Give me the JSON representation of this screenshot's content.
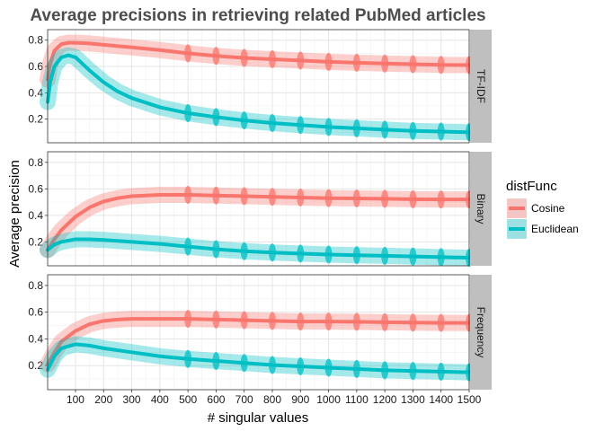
{
  "chart_data": {
    "type": "line",
    "title": "Average precisions in retrieving related PubMed articles",
    "xlabel": "# singular values",
    "ylabel": "Average precision",
    "x_ticks": [
      100,
      200,
      300,
      400,
      500,
      600,
      700,
      800,
      900,
      1000,
      1100,
      1200,
      1300,
      1400,
      1500
    ],
    "x_tick_labels": [
      "100",
      "200",
      "300",
      "400",
      "500",
      "600",
      "700",
      "800",
      "900",
      "1000",
      "1100",
      "1200",
      "1300",
      "1400",
      "1500"
    ],
    "xlim": [
      1,
      1500
    ],
    "y_ticks": [
      0.2,
      0.4,
      0.6,
      0.8
    ],
    "y_tick_labels": [
      "0.2",
      "0.4",
      "0.6",
      "0.8"
    ],
    "ylim": [
      0.02,
      0.88
    ],
    "grid": true,
    "legend": {
      "title": "distFunc",
      "placement": "right",
      "entries": [
        {
          "name": "Cosine",
          "color": "#F8766D"
        },
        {
          "name": "Euclidean",
          "color": "#00BFC4"
        }
      ]
    },
    "facets": [
      {
        "label": "TF-IDF",
        "series": [
          {
            "name": "Cosine",
            "color": "#F8766D",
            "x": [
              1,
              10,
              25,
              50,
              75,
              100,
              150,
              200,
              300,
              400,
              500,
              600,
              700,
              800,
              900,
              1000,
              1100,
              1200,
              1300,
              1400,
              1500
            ],
            "y": [
              0.5,
              0.62,
              0.72,
              0.77,
              0.78,
              0.78,
              0.775,
              0.765,
              0.745,
              0.725,
              0.7,
              0.68,
              0.665,
              0.655,
              0.645,
              0.635,
              0.628,
              0.622,
              0.617,
              0.612,
              0.61
            ]
          },
          {
            "name": "Euclidean",
            "color": "#00BFC4",
            "x": [
              1,
              10,
              25,
              50,
              75,
              100,
              125,
              150,
              200,
              250,
              300,
              400,
              500,
              600,
              700,
              800,
              900,
              1000,
              1100,
              1200,
              1300,
              1400,
              1500
            ],
            "y": [
              0.33,
              0.48,
              0.6,
              0.67,
              0.685,
              0.67,
              0.62,
              0.57,
              0.48,
              0.41,
              0.36,
              0.29,
              0.245,
              0.215,
              0.19,
              0.17,
              0.155,
              0.14,
              0.13,
              0.12,
              0.11,
              0.105,
              0.1
            ]
          }
        ]
      },
      {
        "label": "Binary",
        "series": [
          {
            "name": "Cosine",
            "color": "#F8766D",
            "x": [
              1,
              25,
              50,
              100,
              150,
              200,
              250,
              300,
              400,
              500,
              600,
              700,
              800,
              900,
              1000,
              1100,
              1200,
              1300,
              1400,
              1500
            ],
            "y": [
              0.14,
              0.22,
              0.29,
              0.39,
              0.46,
              0.505,
              0.53,
              0.545,
              0.555,
              0.555,
              0.55,
              0.545,
              0.54,
              0.535,
              0.53,
              0.528,
              0.525,
              0.522,
              0.52,
              0.52
            ]
          },
          {
            "name": "Euclidean",
            "color": "#00BFC4",
            "x": [
              1,
              25,
              50,
              100,
              150,
              200,
              300,
              400,
              500,
              600,
              700,
              800,
              900,
              1000,
              1100,
              1200,
              1300,
              1400,
              1500
            ],
            "y": [
              0.14,
              0.18,
              0.2,
              0.22,
              0.22,
              0.215,
              0.2,
              0.185,
              0.165,
              0.145,
              0.13,
              0.12,
              0.112,
              0.105,
              0.1,
              0.095,
              0.09,
              0.085,
              0.08
            ]
          }
        ]
      },
      {
        "label": "Frequency",
        "series": [
          {
            "name": "Cosine",
            "color": "#F8766D",
            "x": [
              1,
              25,
              50,
              100,
              150,
              200,
              250,
              300,
              400,
              500,
              600,
              700,
              800,
              900,
              1000,
              1100,
              1200,
              1300,
              1400,
              1500
            ],
            "y": [
              0.21,
              0.3,
              0.38,
              0.46,
              0.51,
              0.535,
              0.545,
              0.55,
              0.55,
              0.55,
              0.545,
              0.54,
              0.535,
              0.53,
              0.53,
              0.528,
              0.525,
              0.522,
              0.52,
              0.52
            ]
          },
          {
            "name": "Euclidean",
            "color": "#00BFC4",
            "x": [
              1,
              25,
              50,
              100,
              150,
              200,
              300,
              400,
              500,
              600,
              700,
              800,
              900,
              1000,
              1100,
              1200,
              1300,
              1400,
              1500
            ],
            "y": [
              0.17,
              0.27,
              0.33,
              0.36,
              0.35,
              0.33,
              0.3,
              0.27,
              0.25,
              0.235,
              0.22,
              0.205,
              0.195,
              0.185,
              0.175,
              0.165,
              0.16,
              0.155,
              0.15
            ]
          }
        ]
      }
    ]
  }
}
